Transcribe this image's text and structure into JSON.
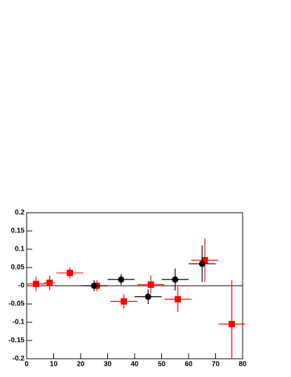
{
  "chart_data": {
    "type": "scatter",
    "xlim": [
      0,
      80
    ],
    "xticks": [
      0,
      10,
      20,
      30,
      40,
      50,
      60,
      70,
      80
    ],
    "ylim": [
      -0.2,
      0.2
    ],
    "yticks": [
      -0.2,
      -0.15,
      -0.1,
      -0.05,
      {
        "value": 0,
        "label": "-0"
      },
      0.05,
      0.1,
      0.15,
      0.2
    ],
    "series": [
      {
        "color": "#ff0000",
        "marker": "square",
        "x": [
          3.5,
          8.5,
          16,
          26,
          36,
          46,
          56,
          66,
          76
        ],
        "values": [
          0.005,
          0.008,
          0.035,
          0.0,
          -0.043,
          0.003,
          -0.037,
          0.07,
          -0.105
        ],
        "x_errors": [
          3.5,
          2,
          5,
          5,
          5,
          5,
          5,
          5,
          5
        ],
        "errors": [
          0.02,
          0.02,
          0.015,
          0.015,
          0.02,
          0.025,
          0.035,
          0.06,
          0.12
        ]
      },
      {
        "color": "#000000",
        "marker": "circle",
        "x": [
          25,
          35,
          45,
          55,
          65
        ],
        "values": [
          0.0,
          0.017,
          -0.03,
          0.017,
          0.06
        ],
        "x_errors": [
          5,
          5,
          5,
          5,
          5
        ],
        "errors": [
          0.015,
          0.015,
          0.02,
          0.03,
          0.05
        ]
      }
    ]
  }
}
